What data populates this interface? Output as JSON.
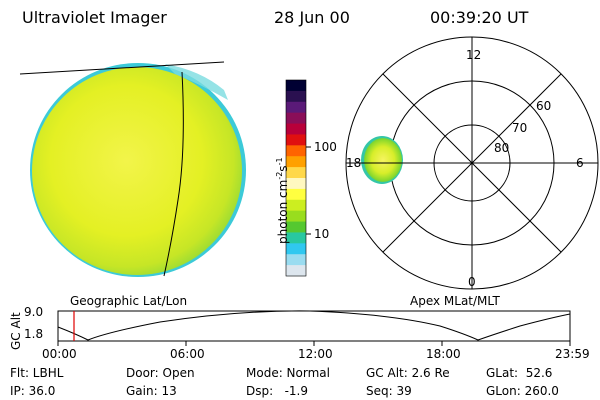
{
  "header": {
    "instrument": "Ultraviolet Imager",
    "date": "28 Jun 00",
    "time": "00:39:20 UT"
  },
  "colorbar": {
    "unit_label": "photon cm",
    "unit_exp1": "-2",
    "unit_s": "s",
    "unit_exp2": "-1",
    "ticks": [
      "100",
      "10"
    ],
    "colors": [
      "#000033",
      "#2a1050",
      "#5a1a78",
      "#8a0e58",
      "#b8003a",
      "#e01010",
      "#ff6400",
      "#ffa000",
      "#ffd84a",
      "#fff8c0",
      "#ffff40",
      "#ccee20",
      "#99dd1e",
      "#55c830",
      "#28c8a0",
      "#30c8f0",
      "#9adcf0",
      "#dde6ee"
    ]
  },
  "labels": {
    "geo": "Geographic Lat/Lon",
    "apex": "Apex MLat/MLT"
  },
  "polar": {
    "mlt": [
      "12",
      "6",
      "0",
      "18"
    ],
    "mlat": [
      "60",
      "70",
      "80"
    ]
  },
  "orbit_plot": {
    "axis_label": "GC Alt",
    "y_ticks": [
      "9.0",
      "1.8"
    ],
    "x_ticks": [
      "00:00",
      "06:00",
      "12:00",
      "18:00",
      "23:59"
    ]
  },
  "info": {
    "filter": "Flt: LBHL",
    "ip": "IP: 36.0",
    "door": "Door: Open",
    "gain": "Gain: 13",
    "mode": "Mode: Normal",
    "dsp": "Dsp:   -1.9",
    "gcalt": "GC Alt: 2.6 Re",
    "seq": "Seq: 39",
    "glat": "GLat:  52.6",
    "glon": "GLon: 260.0"
  },
  "accent": {
    "marker": "#e00000",
    "disk": "#e4f020"
  }
}
